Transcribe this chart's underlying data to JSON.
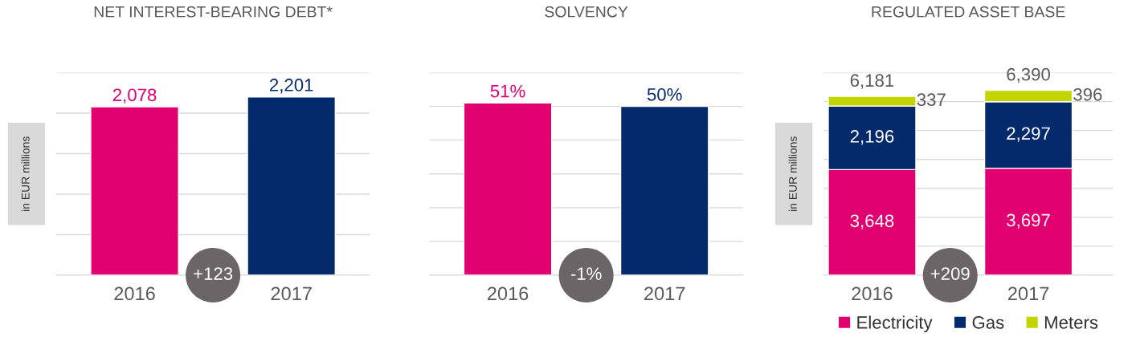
{
  "chart_data": [
    {
      "type": "bar",
      "title": "NET INTEREST-BEARING DEBT*",
      "ylabel": "in EUR millions",
      "categories": [
        "2016",
        "2017"
      ],
      "values": [
        2078,
        2201
      ],
      "colors": [
        "#e0006f",
        "#052a6b"
      ],
      "value_labels": [
        "2,078",
        "2,201"
      ],
      "ylim": [
        0,
        2500
      ],
      "yticks": [
        {
          "value": 0,
          "label": null
        },
        {
          "value": 500,
          "label": null
        },
        {
          "value": 1000,
          "label": null
        },
        {
          "value": 1500,
          "label": null
        },
        {
          "value": 2000,
          "label": null
        },
        {
          "value": 2500,
          "label": null
        }
      ],
      "grid": "y",
      "tick_labels": "x",
      "annotations": [
        "+123"
      ]
    },
    {
      "type": "bar",
      "title": "SOLVENCY",
      "categories": [
        "2016",
        "2017"
      ],
      "values": [
        51,
        50
      ],
      "colors": [
        "#e0006f",
        "#052a6b"
      ],
      "value_labels": [
        "51%",
        "50%"
      ],
      "ylim": [
        0,
        60
      ],
      "yticks": [
        {
          "value": 0,
          "label": null
        },
        {
          "value": 10,
          "label": null
        },
        {
          "value": 20,
          "label": null
        },
        {
          "value": 30,
          "label": null
        },
        {
          "value": 40,
          "label": null
        },
        {
          "value": 50,
          "label": null
        },
        {
          "value": 60,
          "label": null
        }
      ],
      "grid": "y",
      "tick_labels": "x",
      "annotations": [
        "-1%"
      ]
    },
    {
      "type": "bar",
      "title": "REGULATED ASSET BASE",
      "ylabel": "in EUR millions",
      "categories": [
        "2016",
        "2017"
      ],
      "stacked": true,
      "series": [
        {
          "name": "Electricity",
          "color": "#e0006f",
          "values": [
            3648,
            3697
          ],
          "value_labels": [
            "3,648",
            "3,697"
          ]
        },
        {
          "name": "Gas",
          "color": "#052a6b",
          "values": [
            2196,
            2297
          ],
          "value_labels": [
            "2,196",
            "2,297"
          ]
        },
        {
          "name": "Meters",
          "color": "#c2d500",
          "values": [
            337,
            396
          ],
          "value_labels": [
            "337",
            "396"
          ]
        }
      ],
      "totals": [
        "6,181",
        "6,390"
      ],
      "ylim": [
        0,
        7000
      ],
      "yticks": [
        {
          "value": 0,
          "label": null
        },
        {
          "value": 1000,
          "label": null
        },
        {
          "value": 2000,
          "label": null
        },
        {
          "value": 3000,
          "label": null
        },
        {
          "value": 4000,
          "label": null
        },
        {
          "value": 5000,
          "label": null
        },
        {
          "value": 6000,
          "label": null
        },
        {
          "value": 7000,
          "label": null
        }
      ],
      "grid": "y",
      "tick_labels": "x",
      "legend": "bottom",
      "annotations": [
        "+209"
      ]
    }
  ]
}
